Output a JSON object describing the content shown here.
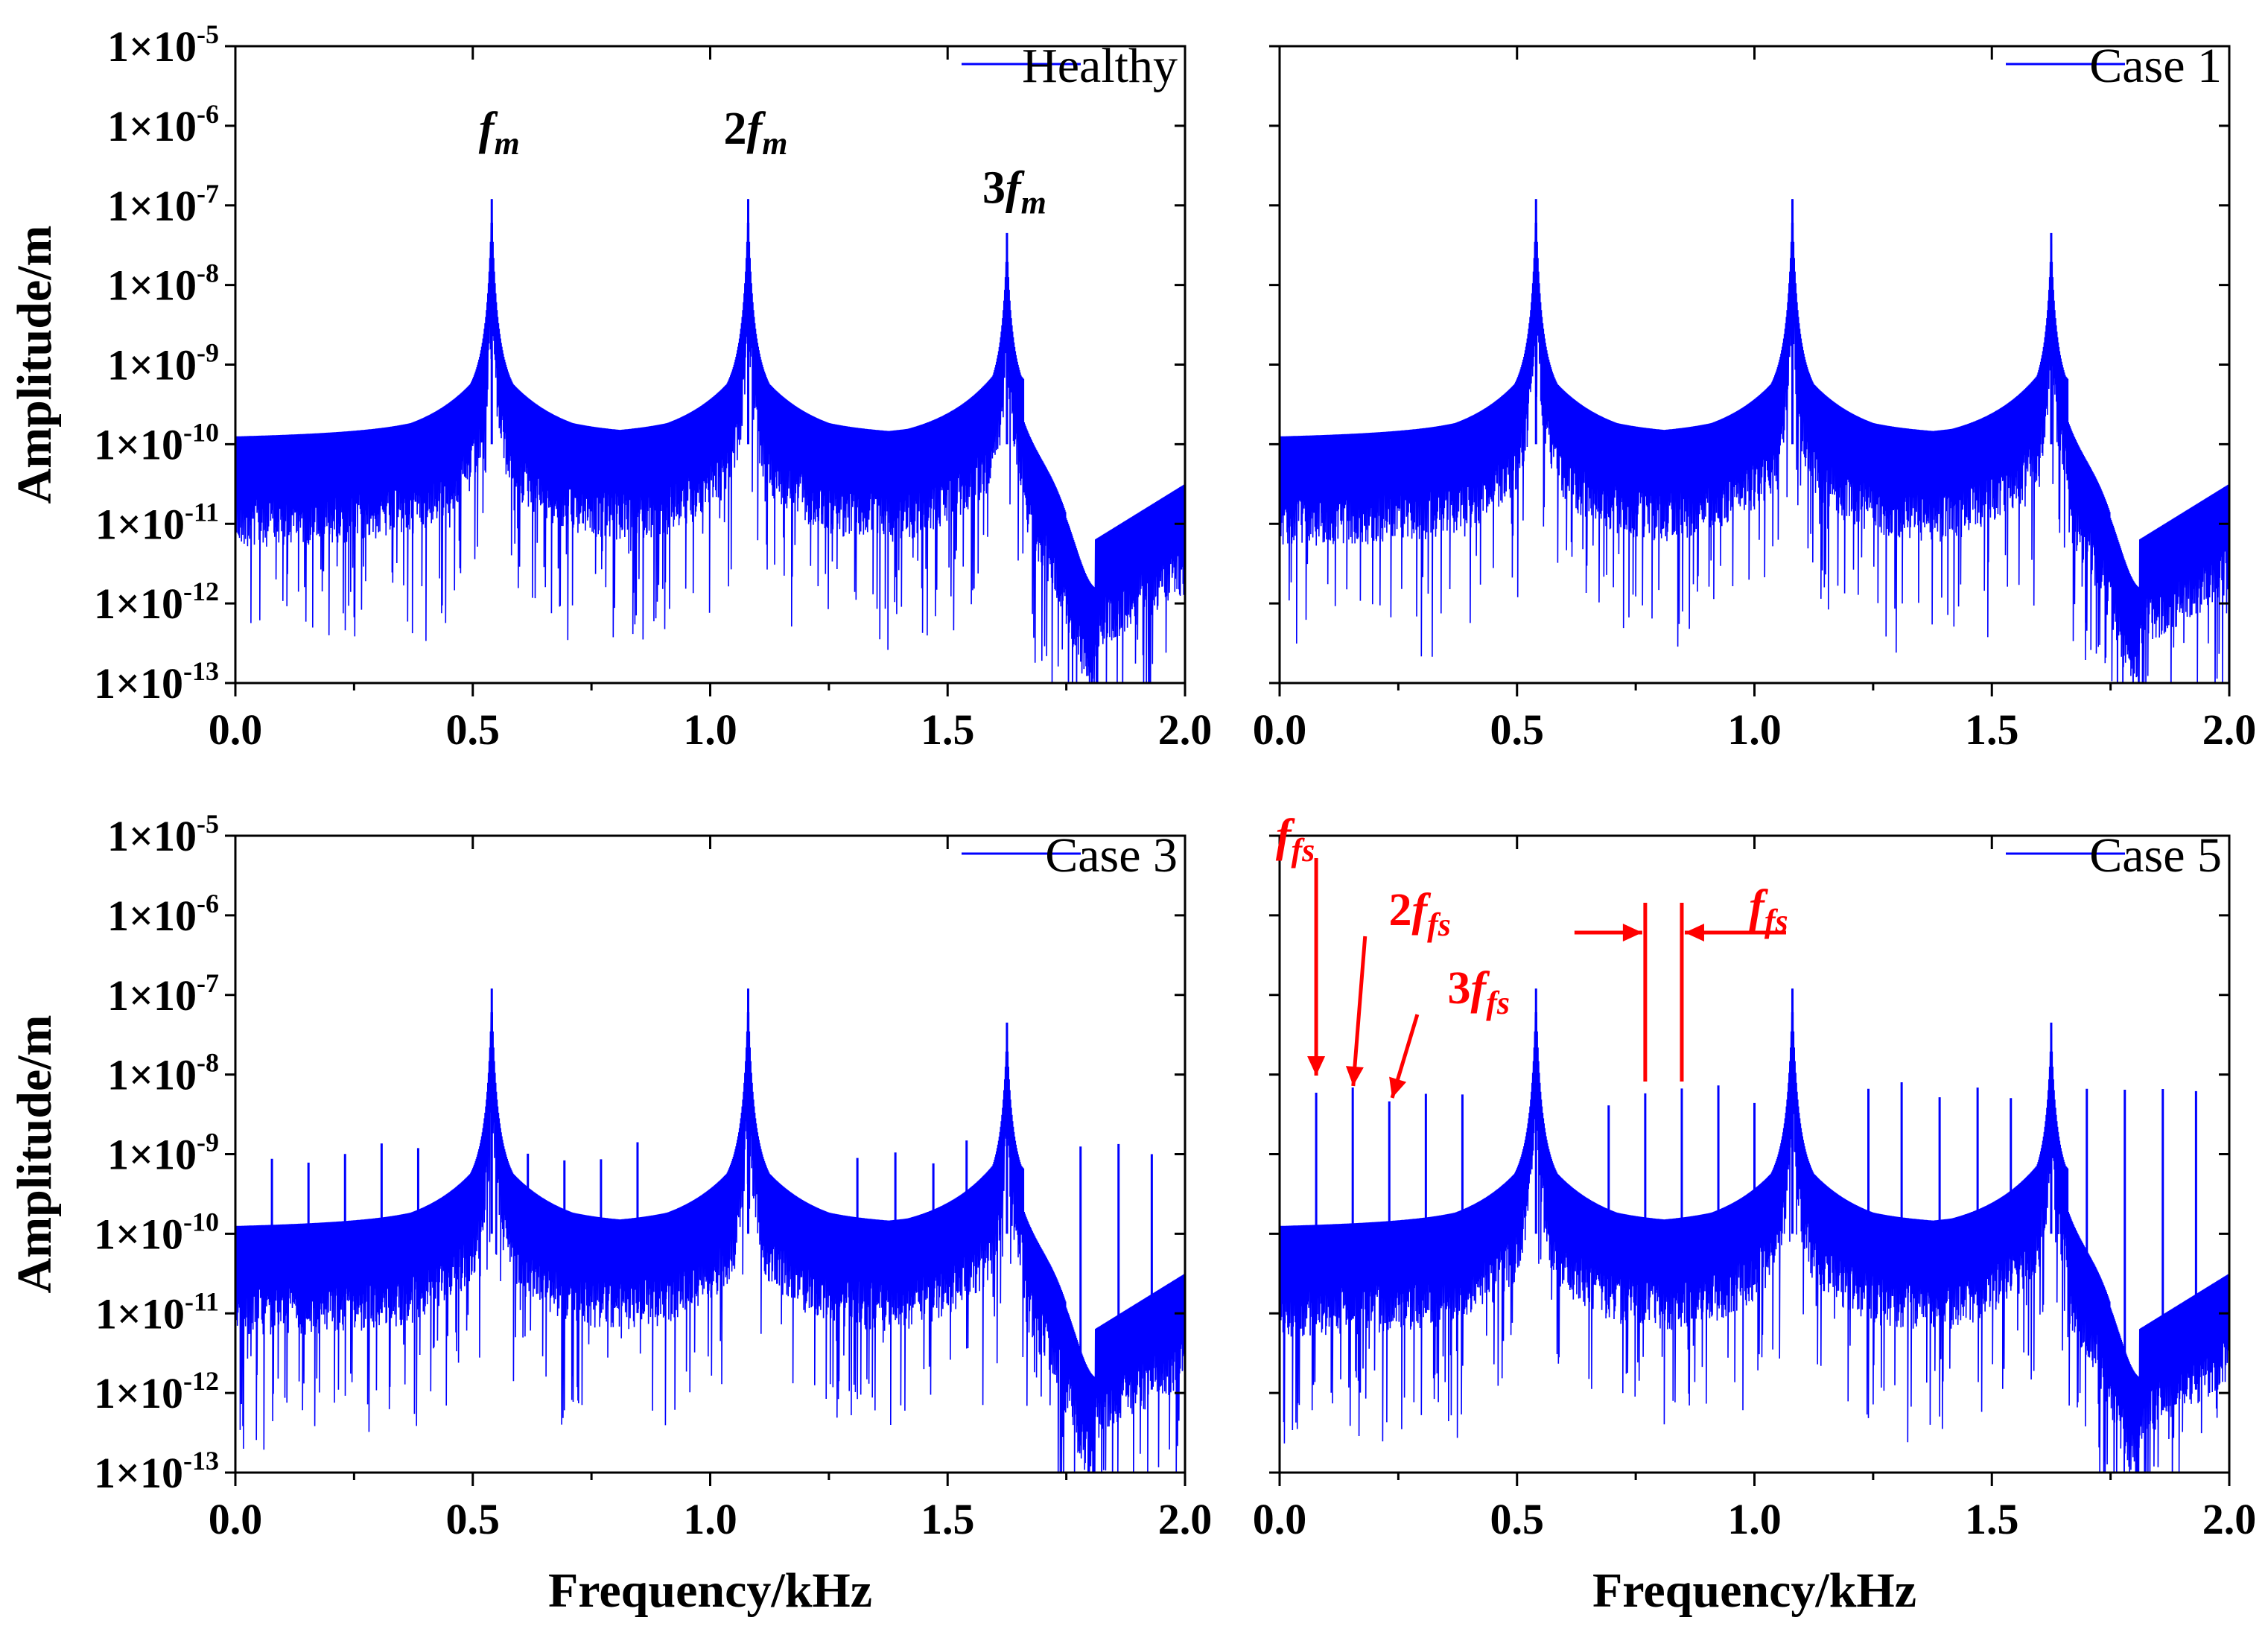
{
  "colors": {
    "series": "#0000ff",
    "annotation": "#ff0000",
    "axis": "#000000"
  },
  "chart_data": [
    {
      "type": "line",
      "panel": "top-left",
      "legend": "top-right",
      "xlabel": "",
      "ylabel": "Amplitude/m",
      "xlim": [
        0,
        2.0
      ],
      "ylim": [
        1e-13,
        1e-05
      ],
      "yscale": "log",
      "xticks": [
        "0.0",
        "0.5",
        "1.0",
        "1.5",
        "2.0"
      ],
      "yticks": [
        "1×10-13",
        "1×10-12",
        "1×10-11",
        "1×10-10",
        "1×10-9",
        "1×10-8",
        "1×10-7",
        "1×10-6",
        "1×10-5"
      ],
      "series": [
        {
          "name": "Healthy"
        }
      ],
      "peaks_khz": [
        0.54,
        1.08,
        1.625
      ],
      "peak_amplitudes": [
        1.2e-07,
        1.2e-07,
        4.5e-08
      ],
      "annotations": [
        {
          "main": "f",
          "sub": "m",
          "x": 0.54,
          "y": 1e-06
        },
        {
          "main": "2f",
          "sub": "m",
          "x": 1.08,
          "y": 1e-06
        },
        {
          "main": "3f",
          "sub": "m",
          "x": 1.625,
          "y": 1.8e-07
        }
      ]
    },
    {
      "type": "line",
      "panel": "top-right",
      "legend": "top-right",
      "xlabel": "",
      "ylabel": "",
      "xlim": [
        0,
        2.0
      ],
      "ylim": [
        1e-13,
        1e-05
      ],
      "yscale": "log",
      "xticks": [
        "0.0",
        "0.5",
        "1.0",
        "1.5",
        "2.0"
      ],
      "series": [
        {
          "name": "Case 1"
        }
      ],
      "peaks_khz": [
        0.54,
        1.08,
        1.625
      ],
      "peak_amplitudes": [
        1.2e-07,
        1.2e-07,
        4.5e-08
      ]
    },
    {
      "type": "line",
      "panel": "bottom-left",
      "legend": "top-right",
      "xlabel": "Frequency/kHz",
      "ylabel": "Amplitude/m",
      "xlim": [
        0,
        2.0
      ],
      "ylim": [
        1e-13,
        1e-05
      ],
      "yscale": "log",
      "xticks": [
        "0.0",
        "0.5",
        "1.0",
        "1.5",
        "2.0"
      ],
      "yticks": [
        "1×10-13",
        "1×10-12",
        "1×10-11",
        "1×10-10",
        "1×10-9",
        "1×10-8",
        "1×10-7",
        "1×10-6",
        "1×10-5"
      ],
      "series": [
        {
          "name": "Case 3"
        }
      ],
      "peaks_khz": [
        0.54,
        1.08,
        1.625
      ],
      "peak_amplitudes": [
        1.2e-07,
        1.2e-07,
        4.5e-08
      ],
      "side_peaks_khz": [
        0.077,
        0.154,
        0.231,
        0.308,
        0.385,
        0.616,
        0.693,
        0.77,
        0.847,
        1.31,
        1.39,
        1.47,
        1.54,
        1.78,
        1.86,
        1.93
      ],
      "side_peak_amplitude": 1.5e-09
    },
    {
      "type": "line",
      "panel": "bottom-right",
      "legend": "top-right",
      "xlabel": "Frequency/kHz",
      "ylabel": "",
      "xlim": [
        0,
        2.0
      ],
      "ylim": [
        1e-13,
        1e-05
      ],
      "yscale": "log",
      "xticks": [
        "0.0",
        "0.5",
        "1.0",
        "1.5",
        "2.0"
      ],
      "series": [
        {
          "name": "Case 5"
        }
      ],
      "peaks_khz": [
        0.54,
        1.08,
        1.625
      ],
      "peak_amplitudes": [
        1.2e-07,
        1.2e-07,
        4.5e-08
      ],
      "side_peaks_khz": [
        0.077,
        0.154,
        0.231,
        0.308,
        0.385,
        0.693,
        0.77,
        0.847,
        0.924,
        1.0,
        1.24,
        1.31,
        1.39,
        1.47,
        1.54,
        1.7,
        1.78,
        1.86,
        1.93
      ],
      "side_peak_amplitude": 8e-09,
      "annotations": [
        {
          "main": "f",
          "sub": "fs",
          "x": 0.077,
          "y": 8e-09
        },
        {
          "main": "2f",
          "sub": "fs",
          "x": 0.154,
          "y": 8e-09
        },
        {
          "main": "3f",
          "sub": "fs",
          "x": 0.231,
          "y": 6e-09
        },
        {
          "main": "f",
          "sub": "fs",
          "x": 0.81,
          "y": 1e-06
        }
      ]
    }
  ]
}
